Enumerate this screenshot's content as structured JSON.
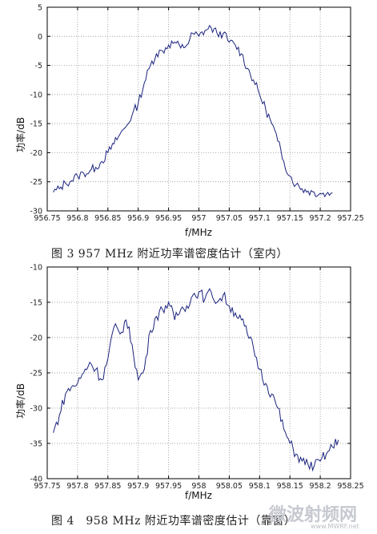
{
  "chart_data": [
    {
      "type": "line",
      "xlabel": "f/MHz",
      "ylabel": "功率/dB",
      "xlim": [
        956.75,
        957.25
      ],
      "ylim": [
        -30,
        5
      ],
      "xticks": [
        956.75,
        956.8,
        956.85,
        956.9,
        956.95,
        957,
        957.05,
        957.1,
        957.15,
        957.2,
        957.25
      ],
      "xtick_labels": [
        "956.75",
        "956.8",
        "956.85",
        "956.9",
        "956.95",
        "957",
        "957.05",
        "957.1",
        "957.15",
        "957.2",
        "957.25"
      ],
      "yticks": [
        5,
        0,
        -5,
        -10,
        -15,
        -20,
        -25,
        -30
      ],
      "ytick_labels": [
        "5",
        "0",
        "-5",
        "-10",
        "-15",
        "-20",
        "-25",
        "-30"
      ],
      "grid": true,
      "color": "#1a237e",
      "series": [
        {
          "x": [
            956.76,
            956.77,
            956.78,
            956.79,
            956.8,
            956.81,
            956.82,
            956.83,
            956.84,
            956.85,
            956.86,
            956.87,
            956.88,
            956.89,
            956.9,
            956.91,
            956.92,
            956.93,
            956.94,
            956.95,
            956.96,
            956.97,
            956.98,
            956.99,
            957.0,
            957.01,
            957.02,
            957.03,
            957.04,
            957.05,
            957.06,
            957.07,
            957.08,
            957.09,
            957.1,
            957.11,
            957.12,
            957.13,
            957.14,
            957.15,
            957.16,
            957.17,
            957.18,
            957.19,
            957.2,
            957.21,
            957.22
          ],
          "y": [
            -26.8,
            -26.2,
            -25.2,
            -24.8,
            -24.0,
            -23.5,
            -23.2,
            -22.5,
            -21.5,
            -20.0,
            -18.5,
            -16.8,
            -15.5,
            -13.5,
            -11.5,
            -8.0,
            -5.0,
            -3.0,
            -2.5,
            -1.5,
            -1.0,
            -2.0,
            -1.5,
            0.5,
            0.0,
            1.0,
            1.5,
            0.5,
            0.5,
            -1.0,
            -1.5,
            -3.0,
            -5.5,
            -7.5,
            -10.0,
            -12.5,
            -15.0,
            -18.0,
            -21.5,
            -24.0,
            -25.5,
            -26.2,
            -26.6,
            -26.8,
            -27.0,
            -27.1,
            -26.9
          ]
        }
      ]
    },
    {
      "type": "line",
      "xlabel": "f/MHz",
      "ylabel": "功率/dB",
      "xlim": [
        957.75,
        958.25
      ],
      "ylim": [
        -40,
        -10
      ],
      "xticks": [
        957.75,
        957.8,
        957.85,
        957.9,
        957.95,
        958,
        958.05,
        958.1,
        958.15,
        958.2,
        958.25
      ],
      "xtick_labels": [
        "957.75",
        "957.8",
        "957.85",
        "957.9",
        "957.95",
        "958",
        "958.05",
        "958.1",
        "958.15",
        "958.2",
        "958.25"
      ],
      "yticks": [
        -10,
        -15,
        -20,
        -25,
        -30,
        -35,
        -40
      ],
      "ytick_labels": [
        "-10",
        "-15",
        "-20",
        "-25",
        "-30",
        "-35",
        "-40"
      ],
      "grid": true,
      "color": "#1a237e",
      "series": [
        {
          "x": [
            957.76,
            957.77,
            957.78,
            957.79,
            957.8,
            957.81,
            957.82,
            957.83,
            957.84,
            957.85,
            957.86,
            957.87,
            957.88,
            957.89,
            957.9,
            957.91,
            957.92,
            957.93,
            957.94,
            957.95,
            957.96,
            957.97,
            957.98,
            957.99,
            958.0,
            958.01,
            958.02,
            958.03,
            958.04,
            958.05,
            958.06,
            958.07,
            958.08,
            958.09,
            958.1,
            958.11,
            958.12,
            958.13,
            958.14,
            958.15,
            958.16,
            958.17,
            958.18,
            958.19,
            958.2,
            958.21,
            958.22,
            958.23
          ],
          "y": [
            -33.5,
            -31.0,
            -28.0,
            -27.0,
            -26.5,
            -25.0,
            -23.5,
            -24.5,
            -26.0,
            -23.0,
            -18.5,
            -19.5,
            -17.5,
            -21.0,
            -26.0,
            -24.5,
            -19.0,
            -17.0,
            -16.0,
            -15.0,
            -17.5,
            -16.0,
            -15.5,
            -14.0,
            -13.5,
            -14.5,
            -13.5,
            -15.0,
            -14.0,
            -15.5,
            -16.5,
            -17.5,
            -19.5,
            -21.5,
            -24.5,
            -26.5,
            -28.0,
            -30.0,
            -33.0,
            -35.0,
            -36.5,
            -37.5,
            -38.0,
            -38.2,
            -37.5,
            -36.5,
            -35.5,
            -34.5
          ]
        }
      ]
    }
  ],
  "captions": {
    "fig3": "图 3 957 MHz 附近功率谱密度估计（室内）",
    "fig4": "图 4　958 MHz 附近功率谱密度估计（靠窗）"
  },
  "watermark": {
    "text": "微波射频网",
    "url": "www.MWRF.net"
  }
}
